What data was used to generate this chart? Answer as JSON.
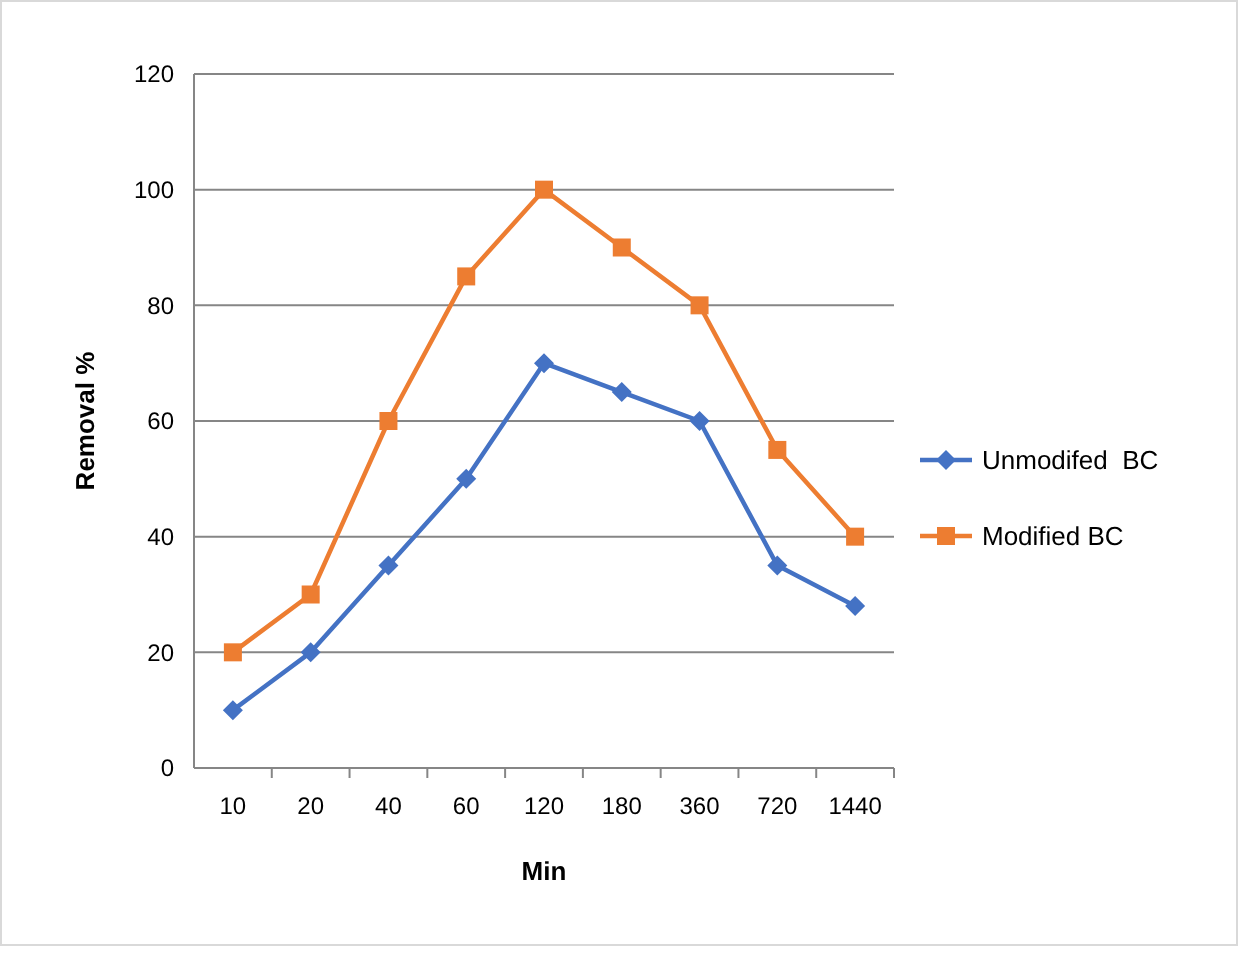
{
  "chart_data": {
    "type": "line",
    "xlabel": "Min",
    "ylabel": "Removal %",
    "categories": [
      "10",
      "20",
      "40",
      "60",
      "120",
      "180",
      "360",
      "720",
      "1440"
    ],
    "series": [
      {
        "name": "Unmodifed  BC",
        "color": "#4472c4",
        "marker": "diamond",
        "values": [
          10,
          20,
          35,
          50,
          70,
          65,
          60,
          35,
          28
        ]
      },
      {
        "name": "Modified BC",
        "color": "#ed7d31",
        "marker": "square",
        "values": [
          20,
          30,
          60,
          85,
          100,
          90,
          80,
          55,
          40
        ]
      }
    ],
    "ylim": [
      0,
      120
    ],
    "yticks": [
      0,
      20,
      40,
      60,
      80,
      100,
      120
    ],
    "grid": "y",
    "legend": "right"
  }
}
